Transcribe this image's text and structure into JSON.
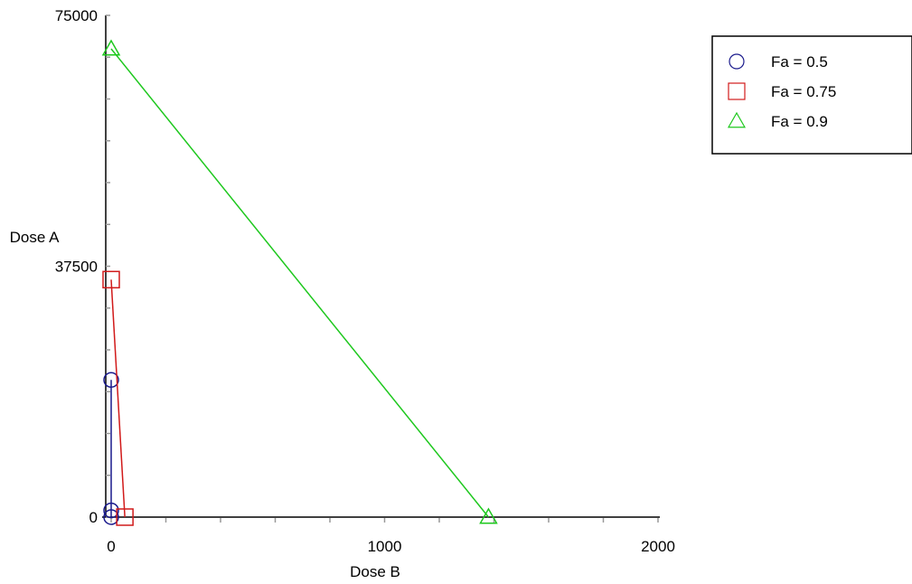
{
  "chart_data": {
    "type": "scatter",
    "title": "",
    "xlabel": "Dose B",
    "ylabel": "Dose A",
    "xlim": [
      0,
      2000
    ],
    "ylim": [
      0,
      75000
    ],
    "x_ticks": [
      "0",
      "1000",
      "2000"
    ],
    "y_ticks": [
      "0",
      "37500",
      "75000"
    ],
    "grid": false,
    "legend_position": "top-right",
    "series": [
      {
        "name": "Fa = 0.5",
        "marker": "circle",
        "color": "#1a1a8c",
        "points": [
          [
            0,
            0
          ],
          [
            0,
            1000
          ],
          [
            0,
            20500
          ]
        ]
      },
      {
        "name": "Fa = 0.75",
        "marker": "square",
        "color": "#d11a1a",
        "points": [
          [
            0,
            35500
          ],
          [
            50,
            0
          ]
        ]
      },
      {
        "name": "Fa = 0.9",
        "marker": "triangle",
        "color": "#1ec81e",
        "points": [
          [
            0,
            70000
          ],
          [
            1380,
            0
          ]
        ]
      }
    ]
  }
}
